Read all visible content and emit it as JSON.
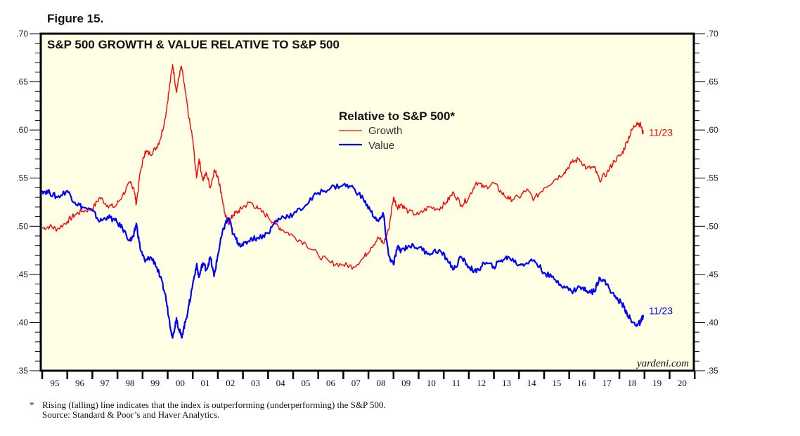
{
  "figure_label": "Figure 15.",
  "footnote": {
    "marker": "*",
    "note": "Rising (falling) line indicates that the index is outperforming (underperforming) the S&P 500.",
    "source": "Source: Standard & Poor’s and Haver Analytics."
  },
  "watermark": "yardeni.com",
  "chart_data": {
    "type": "line",
    "title": "S&P 500 GROWTH & VALUE RELATIVE TO S&P 500",
    "legend_title": "Relative to S&P 500*",
    "legend_position": "top-center",
    "xlabel": "",
    "ylabel": "",
    "xlim": [
      1995,
      2021
    ],
    "ylim": [
      0.35,
      0.7
    ],
    "y_ticks": [
      ".70",
      ".65",
      ".60",
      ".55",
      ".50",
      ".45",
      ".40",
      ".35"
    ],
    "x_tick_labels": [
      "95",
      "96",
      "97",
      "98",
      "99",
      "00",
      "01",
      "02",
      "03",
      "04",
      "05",
      "06",
      "07",
      "08",
      "09",
      "10",
      "11",
      "12",
      "13",
      "14",
      "15",
      "16",
      "17",
      "18",
      "19",
      "20"
    ],
    "grid": false,
    "background": "#FFFFE6",
    "series": [
      {
        "name": "Growth",
        "color": "#FF0000",
        "end_label": "11/23",
        "x": [
          1995.0,
          1995.3,
          1995.6,
          1996.0,
          1996.3,
          1996.6,
          1997.0,
          1997.3,
          1997.6,
          1997.9,
          1998.2,
          1998.5,
          1998.65,
          1998.75,
          1998.9,
          1999.1,
          1999.3,
          1999.5,
          1999.7,
          1999.9,
          2000.05,
          2000.2,
          2000.35,
          2000.45,
          2000.55,
          2000.7,
          2000.85,
          2001.0,
          2001.15,
          2001.25,
          2001.4,
          2001.55,
          2001.7,
          2001.85,
          2002.0,
          2002.15,
          2002.3,
          2002.45,
          2002.6,
          2002.8,
          2003.0,
          2003.3,
          2003.6,
          2004.0,
          2004.3,
          2004.6,
          2005.0,
          2005.5,
          2006.0,
          2006.5,
          2007.0,
          2007.4,
          2007.8,
          2008.1,
          2008.4,
          2008.6,
          2008.8,
          2009.0,
          2009.15,
          2009.3,
          2009.6,
          2010.0,
          2010.4,
          2010.8,
          2011.1,
          2011.4,
          2011.7,
          2012.0,
          2012.3,
          2012.6,
          2013.0,
          2013.3,
          2013.6,
          2014.0,
          2014.3,
          2014.6,
          2015.0,
          2015.4,
          2015.8,
          2016.1,
          2016.4,
          2016.7,
          2017.0,
          2017.2,
          2017.5,
          2017.8,
          2018.1,
          2018.3,
          2018.5,
          2018.7,
          2018.85,
          2018.95
        ],
        "values": [
          0.498,
          0.5,
          0.497,
          0.505,
          0.512,
          0.516,
          0.518,
          0.53,
          0.522,
          0.52,
          0.532,
          0.545,
          0.54,
          0.523,
          0.555,
          0.578,
          0.575,
          0.58,
          0.59,
          0.612,
          0.64,
          0.668,
          0.64,
          0.655,
          0.666,
          0.64,
          0.612,
          0.59,
          0.55,
          0.57,
          0.548,
          0.555,
          0.54,
          0.558,
          0.552,
          0.533,
          0.51,
          0.503,
          0.512,
          0.515,
          0.52,
          0.525,
          0.518,
          0.51,
          0.502,
          0.496,
          0.49,
          0.482,
          0.47,
          0.462,
          0.46,
          0.458,
          0.467,
          0.478,
          0.488,
          0.482,
          0.496,
          0.53,
          0.52,
          0.523,
          0.515,
          0.512,
          0.52,
          0.518,
          0.525,
          0.535,
          0.522,
          0.53,
          0.546,
          0.54,
          0.545,
          0.535,
          0.528,
          0.53,
          0.538,
          0.528,
          0.54,
          0.548,
          0.556,
          0.566,
          0.57,
          0.56,
          0.561,
          0.548,
          0.555,
          0.568,
          0.575,
          0.588,
          0.6,
          0.608,
          0.605,
          0.596
        ]
      },
      {
        "name": "Value",
        "color": "#0000FF",
        "end_label": "11/23",
        "x": [
          1995.0,
          1995.3,
          1995.6,
          1996.0,
          1996.3,
          1996.6,
          1997.0,
          1997.3,
          1997.6,
          1997.9,
          1998.2,
          1998.5,
          1998.65,
          1998.75,
          1998.9,
          1999.1,
          1999.3,
          1999.5,
          1999.7,
          1999.9,
          2000.05,
          2000.2,
          2000.35,
          2000.45,
          2000.55,
          2000.7,
          2000.85,
          2001.0,
          2001.15,
          2001.25,
          2001.4,
          2001.55,
          2001.7,
          2001.85,
          2002.0,
          2002.15,
          2002.3,
          2002.45,
          2002.6,
          2002.8,
          2003.0,
          2003.3,
          2003.6,
          2004.0,
          2004.3,
          2004.6,
          2005.0,
          2005.5,
          2006.0,
          2006.5,
          2007.0,
          2007.4,
          2007.8,
          2008.1,
          2008.4,
          2008.6,
          2008.8,
          2009.0,
          2009.15,
          2009.3,
          2009.6,
          2010.0,
          2010.4,
          2010.8,
          2011.1,
          2011.4,
          2011.7,
          2012.0,
          2012.3,
          2012.6,
          2013.0,
          2013.3,
          2013.6,
          2014.0,
          2014.3,
          2014.6,
          2015.0,
          2015.4,
          2015.8,
          2016.1,
          2016.4,
          2016.7,
          2017.0,
          2017.2,
          2017.5,
          2017.8,
          2018.1,
          2018.3,
          2018.5,
          2018.7,
          2018.85,
          2018.95
        ],
        "values": [
          0.537,
          0.535,
          0.53,
          0.537,
          0.525,
          0.52,
          0.516,
          0.505,
          0.51,
          0.506,
          0.498,
          0.485,
          0.49,
          0.503,
          0.478,
          0.463,
          0.468,
          0.462,
          0.447,
          0.43,
          0.405,
          0.384,
          0.405,
          0.393,
          0.385,
          0.4,
          0.418,
          0.44,
          0.46,
          0.447,
          0.462,
          0.455,
          0.468,
          0.448,
          0.47,
          0.49,
          0.503,
          0.508,
          0.492,
          0.483,
          0.48,
          0.487,
          0.488,
          0.493,
          0.505,
          0.51,
          0.512,
          0.522,
          0.535,
          0.54,
          0.543,
          0.54,
          0.528,
          0.515,
          0.505,
          0.512,
          0.47,
          0.46,
          0.478,
          0.475,
          0.48,
          0.478,
          0.472,
          0.475,
          0.467,
          0.455,
          0.468,
          0.458,
          0.452,
          0.462,
          0.458,
          0.465,
          0.468,
          0.46,
          0.462,
          0.465,
          0.452,
          0.445,
          0.438,
          0.432,
          0.437,
          0.433,
          0.432,
          0.447,
          0.44,
          0.427,
          0.42,
          0.41,
          0.4,
          0.398,
          0.4,
          0.408
        ]
      }
    ]
  }
}
